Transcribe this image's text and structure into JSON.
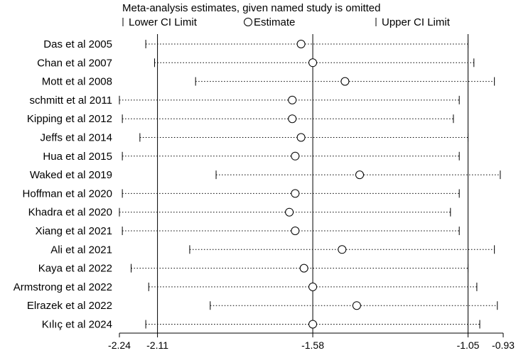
{
  "chart_data": {
    "type": "forest",
    "title": "Meta-analysis estimates, given named study is omitted",
    "legend": {
      "lower": "Lower CI Limit",
      "estimate": "Estimate",
      "upper": "Upper CI Limit",
      "placement": "top"
    },
    "x_ticks": [
      -2.24,
      -2.11,
      -1.58,
      -1.05,
      -0.93
    ],
    "x_tick_labels": [
      "-2.24",
      "-2.11",
      "-1.58",
      "-1.05",
      "-0.93"
    ],
    "xlim": [
      -2.24,
      -0.93
    ],
    "reference_lines": [
      -2.11,
      -1.58,
      -1.05
    ],
    "studies": [
      {
        "name": "Das et al 2005",
        "lower": -2.15,
        "estimate": -1.62,
        "upper": -1.05
      },
      {
        "name": "Chan et al 2007",
        "lower": -2.12,
        "estimate": -1.58,
        "upper": -1.03
      },
      {
        "name": "Mott et al 2008",
        "lower": -1.98,
        "estimate": -1.47,
        "upper": -0.96
      },
      {
        "name": "schmitt et al 2011",
        "lower": -2.24,
        "estimate": -1.65,
        "upper": -1.08
      },
      {
        "name": "Kipping et al 2012",
        "lower": -2.23,
        "estimate": -1.65,
        "upper": -1.1
      },
      {
        "name": "Jeffs et al 2014",
        "lower": -2.17,
        "estimate": -1.62,
        "upper": -1.05
      },
      {
        "name": "Hua et al 2015",
        "lower": -2.23,
        "estimate": -1.64,
        "upper": -1.08
      },
      {
        "name": "Waked et al 2019",
        "lower": -1.91,
        "estimate": -1.42,
        "upper": -0.94
      },
      {
        "name": "Hoffman et al 2020",
        "lower": -2.23,
        "estimate": -1.64,
        "upper": -1.08
      },
      {
        "name": "Khadra et al 2020",
        "lower": -2.24,
        "estimate": -1.66,
        "upper": -1.11
      },
      {
        "name": "Xiang et al 2021",
        "lower": -2.23,
        "estimate": -1.64,
        "upper": -1.08
      },
      {
        "name": "Ali et al 2021",
        "lower": -2.0,
        "estimate": -1.48,
        "upper": -0.96
      },
      {
        "name": "Kaya et al 2022",
        "lower": -2.2,
        "estimate": -1.61,
        "upper": -1.05
      },
      {
        "name": "Armstrong et al 2022",
        "lower": -2.14,
        "estimate": -1.58,
        "upper": -1.02
      },
      {
        "name": "Elrazek et al 2022",
        "lower": -1.93,
        "estimate": -1.43,
        "upper": -0.95
      },
      {
        "name": "Kılıç et al 2024",
        "lower": -2.15,
        "estimate": -1.58,
        "upper": -1.01
      }
    ]
  }
}
